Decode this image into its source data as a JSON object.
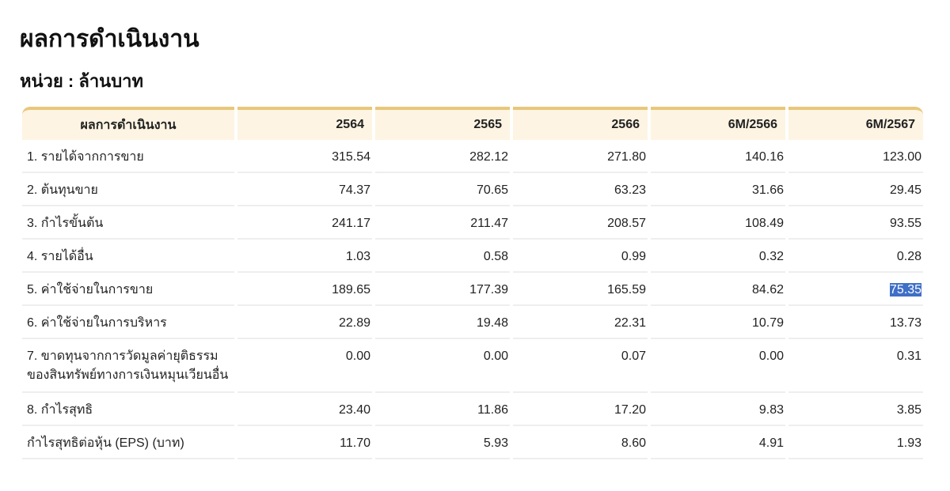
{
  "page": {
    "title": "ผลการดำเนินงาน",
    "unit": "หน่วย : ล้านบาท"
  },
  "table": {
    "header": [
      "ผลการดำเนินงาน",
      "2564",
      "2565",
      "2566",
      "6M/2566",
      "6M/2567"
    ],
    "rows": [
      {
        "label": "1. รายได้จากการขาย",
        "values": [
          "315.54",
          "282.12",
          "271.80",
          "140.16",
          "123.00"
        ]
      },
      {
        "label": "2. ต้นทุนขาย",
        "values": [
          "74.37",
          "70.65",
          "63.23",
          "31.66",
          "29.45"
        ]
      },
      {
        "label": "3. กำไรขั้นต้น",
        "values": [
          "241.17",
          "211.47",
          "208.57",
          "108.49",
          "93.55"
        ]
      },
      {
        "label": "4. รายได้อื่น",
        "values": [
          "1.03",
          "0.58",
          "0.99",
          "0.32",
          "0.28"
        ]
      },
      {
        "label": "5. ค่าใช้จ่ายในการขาย",
        "values": [
          "189.65",
          "177.39",
          "165.59",
          "84.62",
          "75.35"
        ]
      },
      {
        "label": "6. ค่าใช้จ่ายในการบริหาร",
        "values": [
          "22.89",
          "19.48",
          "22.31",
          "10.79",
          "13.73"
        ]
      },
      {
        "label": "7. ขาดทุนจากการวัดมูลค่ายุติธรรม\nของสินทรัพย์ทางการเงินหมุนเวียนอื่น",
        "values": [
          "0.00",
          "0.00",
          "0.07",
          "0.00",
          "0.31"
        ]
      },
      {
        "label": "8. กำไรสุทธิ",
        "values": [
          "23.40",
          "11.86",
          "17.20",
          "9.83",
          "3.85"
        ]
      },
      {
        "label": "กำไรสุทธิต่อหุ้น (EPS) (บาท)",
        "values": [
          "11.70",
          "5.93",
          "8.60",
          "4.91",
          "1.93"
        ]
      }
    ],
    "selected_cell": {
      "row": 4,
      "col": 4
    }
  },
  "colors": {
    "header_bg": "#fdf4e3",
    "header_border": "#e8c77a",
    "selection": "#3f6fc6"
  }
}
